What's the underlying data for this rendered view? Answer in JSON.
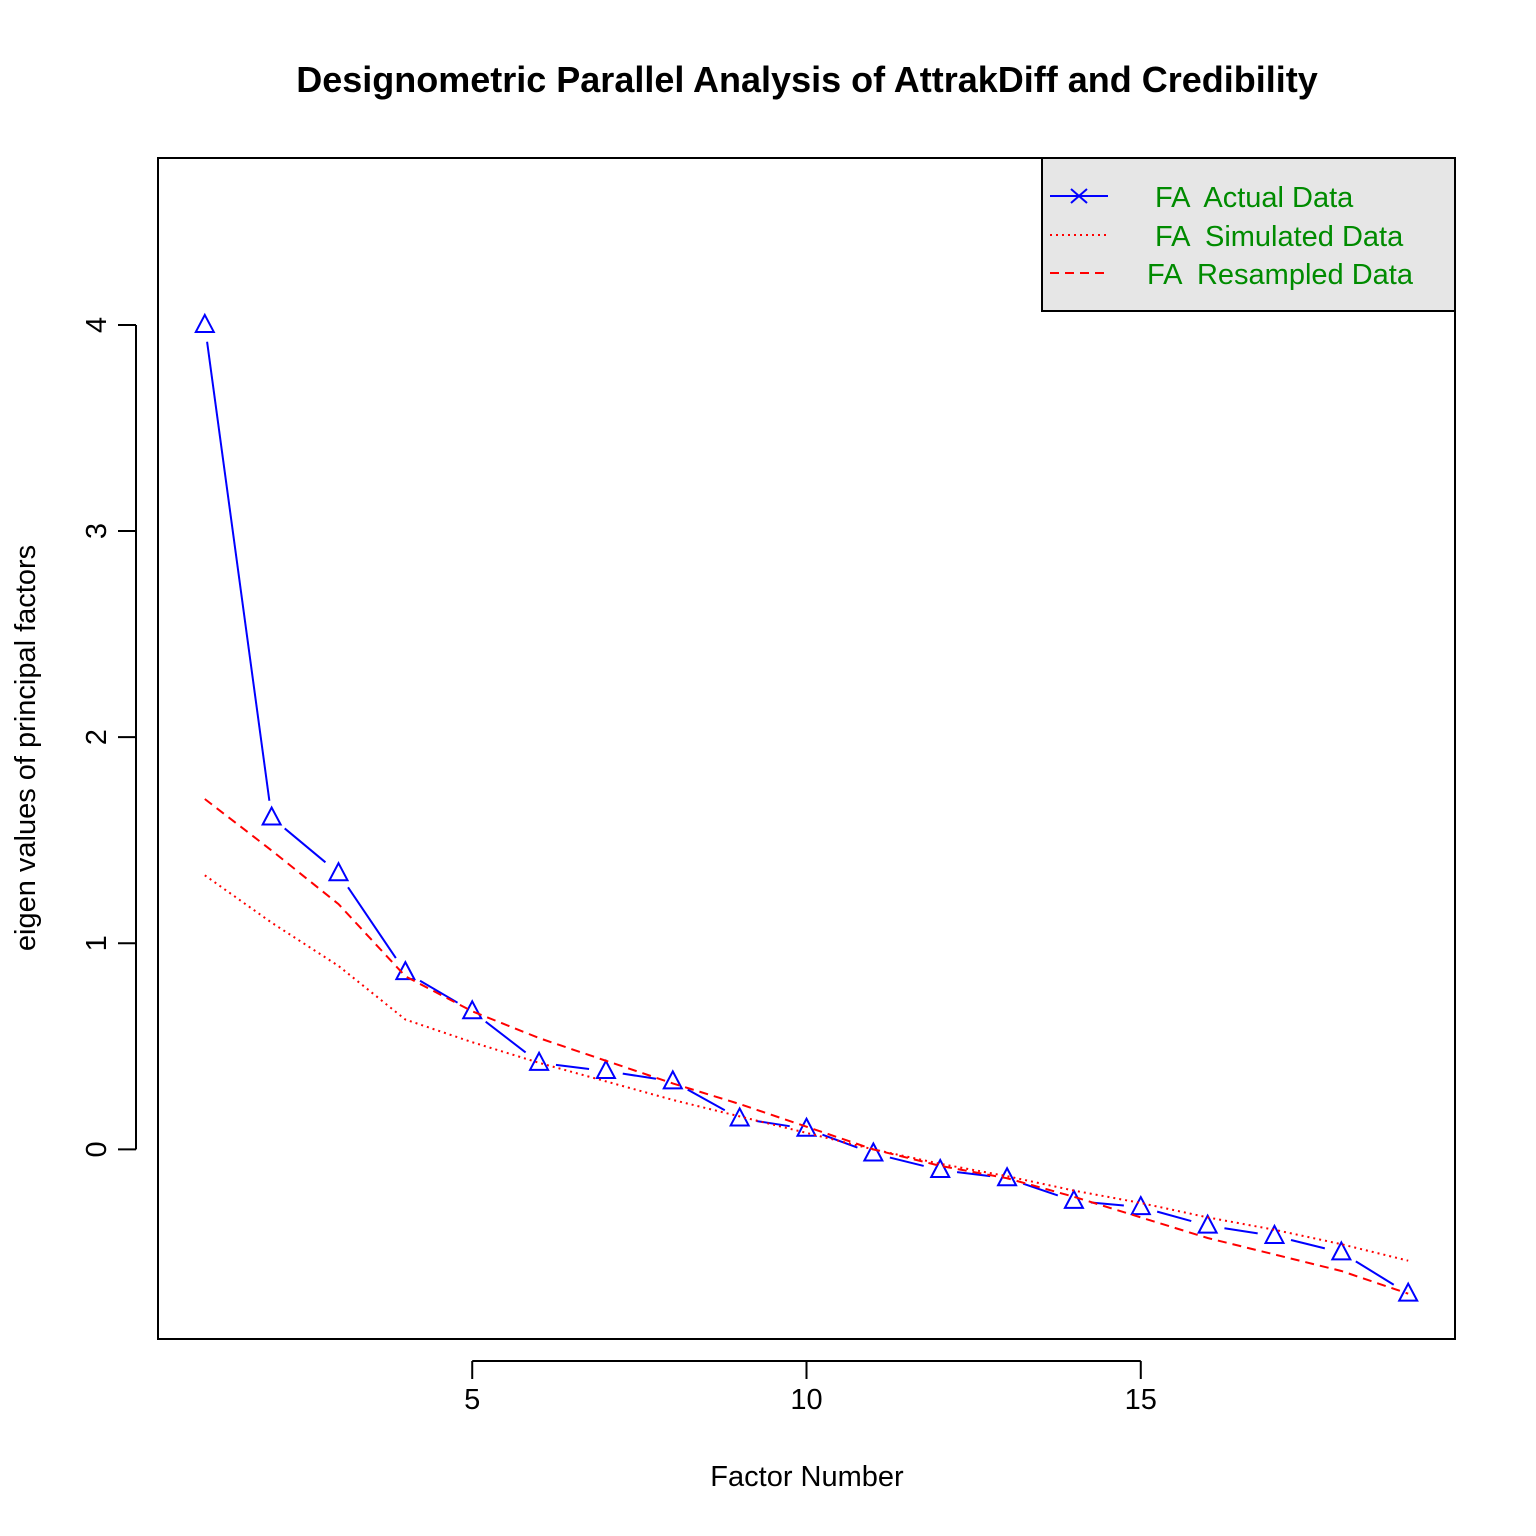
{
  "chart_data": {
    "type": "line",
    "title": "Designometric Parallel Analysis of AttrakDiff and Credibility",
    "xlabel": "Factor Number",
    "ylabel": "eigen values of principal factors",
    "xlim": [
      0.3,
      19.7
    ],
    "ylim": [
      -0.92,
      4.81
    ],
    "x_ticks": [
      5,
      10,
      15
    ],
    "y_ticks": [
      0,
      1,
      2,
      3,
      4
    ],
    "grid": false,
    "legend_position": "top-right",
    "x": [
      1,
      2,
      3,
      4,
      5,
      6,
      7,
      8,
      9,
      10,
      11,
      12,
      13,
      14,
      15,
      16,
      17,
      18,
      19
    ],
    "series": [
      {
        "name": "FA  Actual Data",
        "color": "#0000ff",
        "line": "solid",
        "marker": "triangle",
        "values": [
          4.0,
          1.61,
          1.34,
          0.86,
          0.67,
          0.42,
          0.38,
          0.33,
          0.15,
          0.1,
          -0.02,
          -0.1,
          -0.14,
          -0.25,
          -0.28,
          -0.37,
          -0.42,
          -0.5,
          -0.7
        ]
      },
      {
        "name": "FA  Simulated Data",
        "color": "#ff0000",
        "line": "dotted",
        "values": [
          1.33,
          1.1,
          0.89,
          0.63,
          0.52,
          0.42,
          0.33,
          0.24,
          0.16,
          0.08,
          0.0,
          -0.07,
          -0.13,
          -0.2,
          -0.26,
          -0.33,
          -0.39,
          -0.46,
          -0.54
        ]
      },
      {
        "name": "FA  Resampled Data",
        "color": "#ff0000",
        "line": "dashed",
        "values": [
          1.7,
          1.45,
          1.19,
          0.84,
          0.67,
          0.54,
          0.43,
          0.32,
          0.22,
          0.11,
          0.0,
          -0.08,
          -0.14,
          -0.23,
          -0.33,
          -0.43,
          -0.51,
          -0.59,
          -0.7
        ]
      }
    ]
  }
}
